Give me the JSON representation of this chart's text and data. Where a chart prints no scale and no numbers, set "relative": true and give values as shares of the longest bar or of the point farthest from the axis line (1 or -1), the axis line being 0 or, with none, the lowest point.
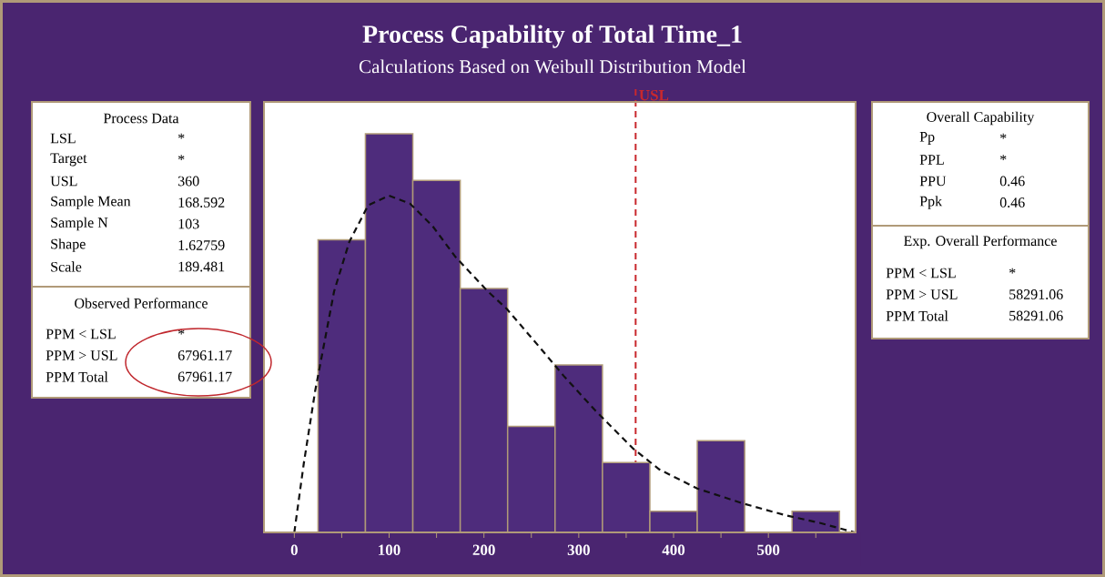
{
  "chart_data": [
    {
      "type": "histogram",
      "title": "Process Capability of Total Time_1",
      "subtitle": "Calculations Based on Weibull Distribution Model",
      "relative": true,
      "tick_labels": "x",
      "bins": [
        25,
        75,
        125,
        175,
        225,
        275,
        325,
        375,
        425,
        475,
        525,
        575
      ],
      "values": [
        0.734,
        1,
        0.883,
        0.612,
        0.266,
        0.42,
        0.175,
        0.053,
        0.23,
        0,
        0.053
      ],
      "color": "#4e2c7c",
      "xlim": [
        -32,
        592
      ],
      "xticks": [
        0,
        {
          "value": 50,
          "label": null
        },
        100,
        {
          "value": 150,
          "label": null
        },
        200,
        {
          "value": 250,
          "label": null
        },
        300,
        {
          "value": 350,
          "label": null
        },
        400,
        {
          "value": 450,
          "label": null
        },
        500,
        {
          "value": 550,
          "label": null
        }
      ],
      "ref_lines": [
        {
          "axis": "x",
          "value": 360,
          "label": "USL",
          "color": "#c8282d",
          "line_style": "dashed"
        }
      ],
      "series": [
        {
          "type": "line",
          "color": "#111111",
          "line_style": "dashed",
          "x": [
            0,
            10,
            22,
            42,
            58,
            78,
            100,
            122,
            146,
            170,
            204,
            224,
            260,
            284,
            317,
            357,
            385,
            425,
            474,
            518,
            554,
            591
          ],
          "values": [
            0,
            0.173,
            0.355,
            0.605,
            0.729,
            0.821,
            0.845,
            0.825,
            0.768,
            0.691,
            0.605,
            0.561,
            0.461,
            0.393,
            0.307,
            0.211,
            0.158,
            0.11,
            0.072,
            0.043,
            0.024,
            0
          ]
        }
      ]
    },
    {
      "type": "other",
      "title": "Process Data",
      "annotations": [
        "LSL",
        "*",
        "Target",
        "*",
        "USL",
        "360",
        "Sample Mean",
        "168.592",
        "Sample N",
        "103",
        "Shape",
        "1.62759",
        "Scale",
        "189.481"
      ]
    },
    {
      "type": "other",
      "title": "Observed Performance",
      "annotations": [
        "PPM < LSL",
        "*",
        "PPM > USL",
        "67961.17",
        "PPM Total",
        "67961.17"
      ]
    },
    {
      "type": "other",
      "title": "Overall Capability",
      "annotations": [
        "Pp",
        "*",
        "PPL",
        "*",
        "PPU",
        "0.46",
        "Ppk",
        "0.46"
      ]
    },
    {
      "type": "other",
      "title": "Exp. Overall Performance",
      "annotations": [
        "PPM < LSL",
        "*",
        "PPM > USL",
        "58291.06",
        "PPM Total",
        "58291.06"
      ]
    }
  ]
}
